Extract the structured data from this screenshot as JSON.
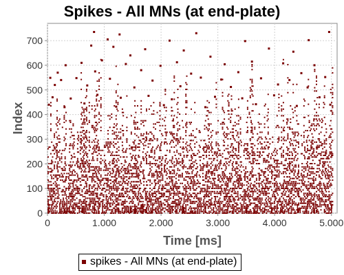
{
  "chart_data": {
    "type": "scatter",
    "title": "Spikes - All MNs (at end-plate)",
    "xlabel": "Time [ms]",
    "ylabel": "Index",
    "xlim": [
      0,
      5100
    ],
    "ylim": [
      0,
      770
    ],
    "x_ticks": [
      0,
      1000,
      2000,
      3000,
      4000,
      5000
    ],
    "x_tick_labels": [
      "0",
      "1.000",
      "2.000",
      "3.000",
      "4.000",
      "5.000"
    ],
    "y_ticks": [
      0,
      100,
      200,
      300,
      400,
      500,
      600,
      700
    ],
    "y_tick_labels": [
      "0",
      "100",
      "200",
      "300",
      "400",
      "500",
      "600",
      "700"
    ],
    "grid": true,
    "legend_position": "bottom",
    "series": [
      {
        "name": "spikes - All MNs (at end-plate)",
        "color": "#7a0000",
        "points": [
          [
            820,
            735
          ],
          [
            1270,
            725
          ],
          [
            2620,
            730
          ],
          [
            4960,
            735
          ],
          [
            1060,
            705
          ],
          [
            2150,
            700
          ],
          [
            3480,
            698
          ],
          [
            4600,
            702
          ],
          [
            770,
            680
          ],
          [
            1160,
            675
          ],
          [
            1720,
            665
          ],
          [
            2400,
            660
          ],
          [
            3900,
            668
          ],
          [
            4330,
            655
          ],
          [
            1460,
            640
          ],
          [
            2870,
            635
          ],
          [
            320,
            600
          ],
          [
            600,
            610
          ],
          [
            960,
            620
          ],
          [
            1380,
            605
          ],
          [
            1990,
            598
          ],
          [
            2280,
            612
          ],
          [
            3120,
            604
          ],
          [
            3600,
            615
          ],
          [
            4150,
            608
          ],
          [
            4700,
            600
          ],
          [
            180,
            570
          ],
          [
            840,
            575
          ],
          [
            1650,
            580
          ],
          [
            2530,
            566
          ],
          [
            3360,
            572
          ],
          [
            4470,
            568
          ],
          [
            50,
            549
          ],
          [
            240,
            540
          ],
          [
            510,
            548
          ],
          [
            1100,
            545
          ],
          [
            1850,
            538
          ],
          [
            2700,
            550
          ],
          [
            3060,
            542
          ],
          [
            3760,
            547
          ],
          [
            4260,
            540
          ],
          [
            4890,
            552
          ],
          [
            130,
            520
          ],
          [
            700,
            518
          ],
          [
            1530,
            510
          ],
          [
            2340,
            515
          ],
          [
            3230,
            512
          ],
          [
            4060,
            522
          ],
          [
            4580,
            510
          ],
          [
            90,
            470
          ],
          [
            410,
            465
          ],
          [
            880,
            480
          ],
          [
            1290,
            468
          ],
          [
            1780,
            476
          ],
          [
            2190,
            462
          ],
          [
            2950,
            472
          ],
          [
            3430,
            466
          ],
          [
            3990,
            478
          ],
          [
            4790,
            470
          ],
          [
            25,
            440
          ],
          [
            300,
            430
          ],
          [
            650,
            445
          ],
          [
            1210,
            432
          ],
          [
            2050,
            438
          ],
          [
            2780,
            430
          ],
          [
            3670,
            442
          ],
          [
            4390,
            435
          ],
          [
            4980,
            440
          ]
        ]
      }
    ]
  }
}
